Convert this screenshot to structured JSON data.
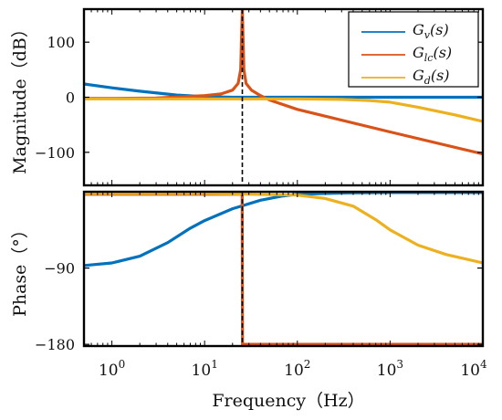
{
  "chart_data": [
    {
      "id": "magnitude",
      "type": "line",
      "ylabel": "Magnitude（dB）",
      "xscale": "log",
      "xlim": [
        0.5,
        10000
      ],
      "ylim": [
        -160,
        160
      ],
      "yticks": [
        100,
        0,
        -100
      ],
      "ytick_labels": [
        "100",
        "0",
        "-100"
      ],
      "grid": false,
      "legend": {
        "position": "top-right",
        "entries": [
          "G_v(s)",
          "G_lc(s)",
          "G_d(s)"
        ]
      },
      "marker_x": 25.5,
      "series": [
        {
          "name": "G_v(s)",
          "color": "#0072BD",
          "x": [
            0.5,
            1,
            2,
            5,
            10,
            20,
            50,
            100,
            1000,
            10000
          ],
          "y": [
            24,
            17,
            11,
            4,
            1,
            0,
            0,
            0,
            0,
            0
          ]
        },
        {
          "name": "G_lc(s)",
          "color": "#D95319",
          "x": [
            0.5,
            1,
            3,
            10,
            15,
            20,
            23,
            24.5,
            25.5,
            26.5,
            28,
            32,
            40,
            50,
            100,
            1000,
            10000
          ],
          "y": [
            -2,
            -2,
            -1.5,
            3,
            6,
            13,
            25,
            50,
            160,
            50,
            25,
            13,
            3,
            -5,
            -22,
            -63,
            -103
          ]
        },
        {
          "name": "G_d(s)",
          "color": "#EDB120",
          "x": [
            0.5,
            10,
            100,
            300,
            600,
            1000,
            2000,
            5000,
            10000
          ],
          "y": [
            -3,
            -3,
            -3,
            -4,
            -6,
            -9,
            -18,
            -32,
            -44
          ]
        }
      ]
    },
    {
      "id": "phase",
      "type": "line",
      "xlabel": "Frequency（Hz）",
      "ylabel": "Phase（°）",
      "xscale": "log",
      "xlim": [
        0.5,
        10000
      ],
      "ylim": [
        -182,
        0
      ],
      "yticks": [
        -90,
        -180
      ],
      "ytick_labels": [
        "-90",
        "-180"
      ],
      "xticks": [
        1,
        10,
        100,
        1000,
        10000
      ],
      "xtick_labels": [
        {
          "base": "10",
          "exp": "0"
        },
        {
          "base": "10",
          "exp": "1"
        },
        {
          "base": "10",
          "exp": "2"
        },
        {
          "base": "10",
          "exp": "3"
        },
        {
          "base": "10",
          "exp": "4"
        }
      ],
      "grid": false,
      "marker_x": 25.5,
      "series": [
        {
          "name": "G_v(s)",
          "color": "#0072BD",
          "x": [
            0.5,
            1,
            2,
            4,
            7,
            10,
            20,
            40,
            70,
            100,
            300,
            1000,
            10000
          ],
          "y": [
            -87,
            -84,
            -76,
            -60,
            -43,
            -34,
            -20,
            -10,
            -5,
            -3,
            -1.5,
            -1,
            -1
          ]
        },
        {
          "name": "G_lc(s)",
          "color": "#D95319",
          "x": [
            0.5,
            25.4,
            25.6,
            10000
          ],
          "y": [
            -3,
            -3,
            -180,
            -180
          ]
        },
        {
          "name": "G_d(s)",
          "color": "#EDB120",
          "x": [
            0.5,
            10,
            100,
            200,
            400,
            700,
            1000,
            2000,
            4000,
            10000
          ],
          "y": [
            -2,
            -2,
            -4,
            -8,
            -17,
            -33,
            -45,
            -63,
            -74,
            -84
          ]
        }
      ]
    }
  ]
}
